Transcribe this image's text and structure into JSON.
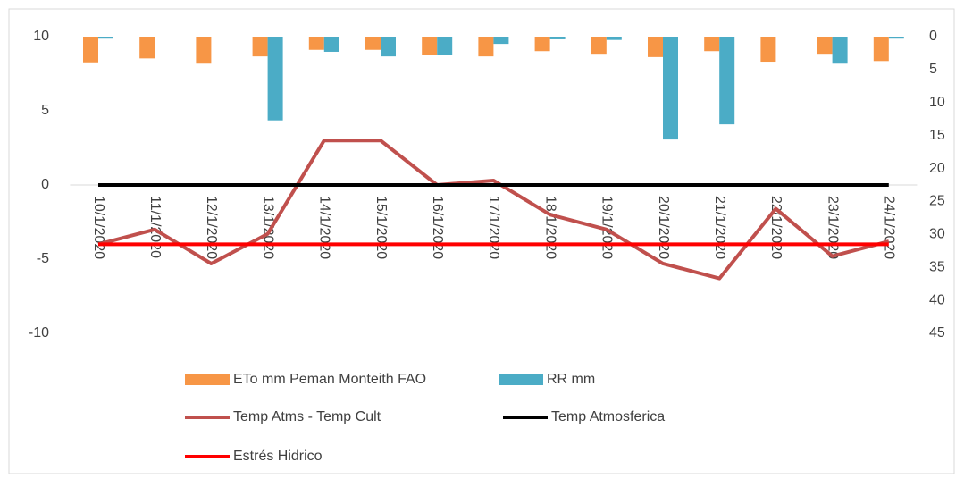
{
  "chart_data": {
    "type": "bar_line",
    "categories": [
      "10/1/2020",
      "11/1/2020",
      "12/1/2020",
      "13/1/2020",
      "14/1/2020",
      "15/1/2020",
      "16/1/2020",
      "17/1/2020",
      "18/1/2020",
      "19/1/2020",
      "20/1/2020",
      "21/1/2020",
      "22/1/2020",
      "23/1/2020",
      "24/1/2020"
    ],
    "ylim": [
      -10,
      10
    ],
    "yticks": [
      -10,
      -5,
      0,
      5,
      10
    ],
    "y2lim": [
      0,
      45
    ],
    "y2ticks": [
      0,
      5,
      10,
      15,
      20,
      25,
      30,
      35,
      40,
      45
    ],
    "y2_inverted": true,
    "series": [
      {
        "name": "ETo mm Peman Monteith FAO",
        "type": "bar",
        "axis": "y2",
        "color": "#f79646",
        "values": [
          3.9,
          3.3,
          4.1,
          3.0,
          2.0,
          2.0,
          2.8,
          3.0,
          2.2,
          2.6,
          3.1,
          2.2,
          3.8,
          2.6,
          3.7
        ]
      },
      {
        "name": "RR mm",
        "type": "bar",
        "axis": "y2",
        "color": "#4bacc6",
        "values": [
          0.3,
          0,
          0,
          12.7,
          2.3,
          3.0,
          2.8,
          1.1,
          0.4,
          0.5,
          15.6,
          13.3,
          0,
          4.1,
          0.3
        ]
      },
      {
        "name": "Temp Atms - Temp Cult",
        "type": "line",
        "color": "#c0504d",
        "values": [
          -4,
          -3,
          -5.3,
          -3.3,
          3,
          3,
          0,
          0.3,
          -2,
          -3,
          -5.3,
          -6.3,
          -1.6,
          -4.8,
          -3.8
        ]
      },
      {
        "name": "Temp Atmosferica",
        "type": "line",
        "color": "#000000",
        "values": [
          0,
          0,
          0,
          0,
          0,
          0,
          0,
          0,
          0,
          0,
          0,
          0,
          0,
          0,
          0
        ]
      },
      {
        "name": "Estrés Hidrico",
        "type": "line",
        "color": "#ff0000",
        "values": [
          -4,
          -4,
          -4,
          -4,
          -4,
          -4,
          -4,
          -4,
          -4,
          -4,
          -4,
          -4,
          -4,
          -4,
          -4
        ]
      }
    ]
  }
}
